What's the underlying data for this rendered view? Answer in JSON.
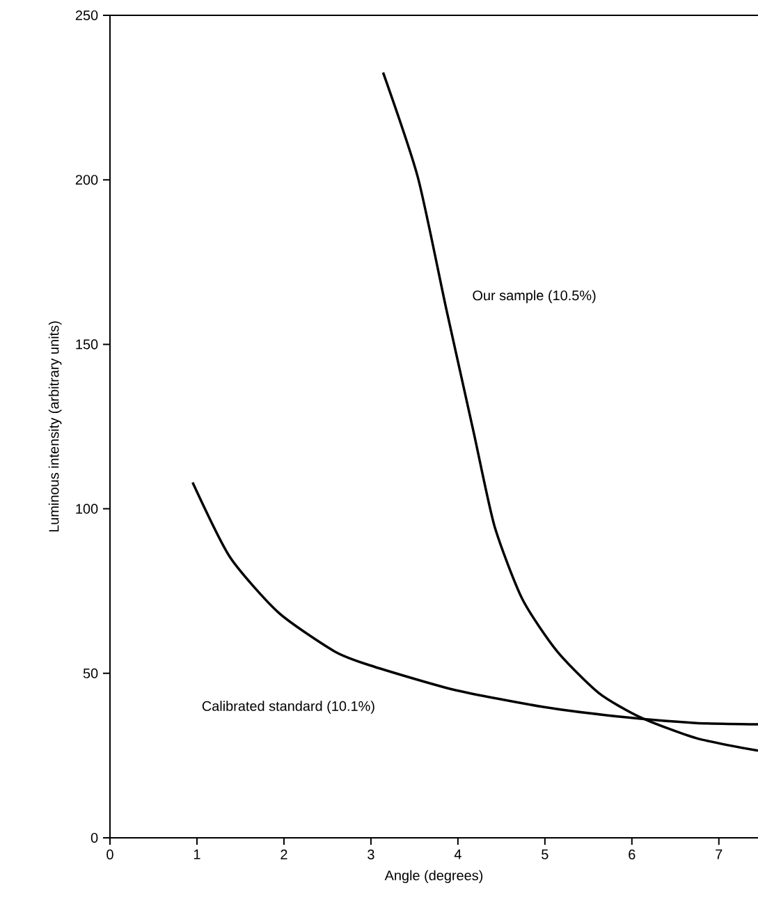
{
  "chart_data": {
    "type": "line",
    "xlabel": "Angle (degrees)",
    "ylabel": "Luminous intensity (arbitrary units)",
    "xlim": [
      0,
      7.45
    ],
    "ylim": [
      0,
      250
    ],
    "xticks": [
      0,
      1,
      2,
      3,
      4,
      5,
      6,
      7
    ],
    "yticks": [
      0,
      50,
      100,
      150,
      200,
      250
    ],
    "series": [
      {
        "name": "Calibrated standard (10.1%)",
        "color": "#000000",
        "x": [
          0.95,
          1.38,
          1.94,
          2.58,
          2.98,
          3.94,
          4.98,
          5.94,
          6.74,
          7.45
        ],
        "values": [
          108,
          85.3,
          68.4,
          56.7,
          52.5,
          45.1,
          39.8,
          36.6,
          34.9,
          34.5
        ]
      },
      {
        "name": "Our sample (10.5%)",
        "color": "#000000",
        "x": [
          3.14,
          3.54,
          3.86,
          4.18,
          4.42,
          4.74,
          5.14,
          5.62,
          6.1,
          6.74,
          7.45
        ],
        "values": [
          232.6,
          200.7,
          161.5,
          123.4,
          94.8,
          72.6,
          56.7,
          44.0,
          36.6,
          30.3,
          26.5
        ]
      }
    ]
  }
}
